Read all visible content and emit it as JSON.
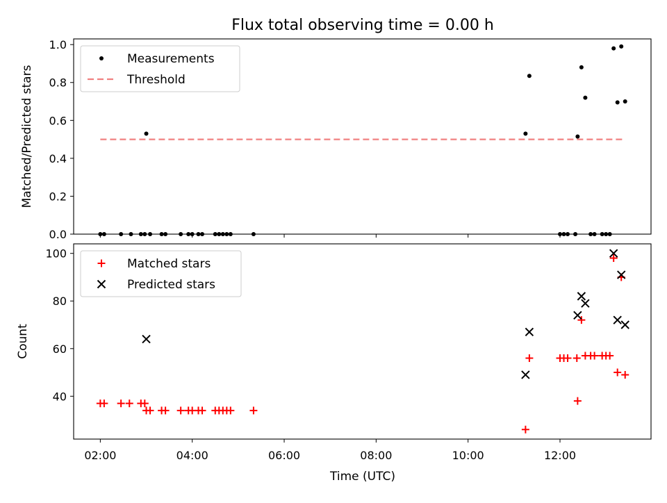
{
  "title": "Flux total observing time = 0.00 h",
  "xlabel": "Time (UTC)",
  "x_tick_labels": [
    "02:00",
    "04:00",
    "06:00",
    "08:00",
    "10:00",
    "12:00"
  ],
  "chart_data": [
    {
      "type": "scatter",
      "panel": "top",
      "ylabel": "Matched/Predicted stars",
      "ylim": [
        0,
        1.03
      ],
      "yticks": [
        0.0,
        0.2,
        0.4,
        0.6,
        0.8,
        1.0
      ],
      "y_tick_labels": [
        "0.0",
        "0.2",
        "0.4",
        "0.6",
        "0.8",
        "1.0"
      ],
      "legend_position": "top-left",
      "series": [
        {
          "name": "Measurements",
          "color": "#000000",
          "marker": "dot",
          "points": [
            [
              "02:00",
              0
            ],
            [
              "02:05",
              0
            ],
            [
              "02:27",
              0
            ],
            [
              "02:40",
              0
            ],
            [
              "02:53",
              0
            ],
            [
              "02:58",
              0
            ],
            [
              "03:00",
              0.53
            ],
            [
              "03:05",
              0
            ],
            [
              "03:20",
              0
            ],
            [
              "03:25",
              0
            ],
            [
              "03:45",
              0
            ],
            [
              "03:55",
              0
            ],
            [
              "04:00",
              0
            ],
            [
              "04:08",
              0
            ],
            [
              "04:13",
              0
            ],
            [
              "04:30",
              0
            ],
            [
              "04:35",
              0
            ],
            [
              "04:40",
              0
            ],
            [
              "04:45",
              0
            ],
            [
              "04:50",
              0
            ],
            [
              "05:20",
              0
            ],
            [
              "11:15",
              0.53
            ],
            [
              "11:20",
              0.835
            ],
            [
              "12:00",
              0
            ],
            [
              "12:05",
              0
            ],
            [
              "12:10",
              0
            ],
            [
              "12:20",
              0
            ],
            [
              "12:23",
              0.515
            ],
            [
              "12:28",
              0.88
            ],
            [
              "12:33",
              0.72
            ],
            [
              "12:40",
              0
            ],
            [
              "12:45",
              0
            ],
            [
              "12:55",
              0
            ],
            [
              "13:00",
              0
            ],
            [
              "13:05",
              0
            ],
            [
              "13:10",
              0.98
            ],
            [
              "13:15",
              0.695
            ],
            [
              "13:20",
              0.99
            ],
            [
              "13:25",
              0.7
            ]
          ]
        },
        {
          "name": "Threshold",
          "color": "#f08080",
          "line": "dashed",
          "points": [
            [
              "02:00",
              0.5
            ],
            [
              "13:25",
              0.5
            ]
          ]
        }
      ]
    },
    {
      "type": "scatter",
      "panel": "bottom",
      "ylabel": "Count",
      "ylim": [
        22,
        104
      ],
      "yticks": [
        40,
        60,
        80,
        100
      ],
      "y_tick_labels": [
        "40",
        "60",
        "80",
        "100"
      ],
      "legend_position": "top-left",
      "series": [
        {
          "name": "Matched stars",
          "color": "#ff0000",
          "marker": "plus",
          "points": [
            [
              "02:00",
              37
            ],
            [
              "02:05",
              37
            ],
            [
              "02:27",
              37
            ],
            [
              "02:38",
              37
            ],
            [
              "02:53",
              37
            ],
            [
              "02:58",
              37
            ],
            [
              "03:00",
              34
            ],
            [
              "03:05",
              34
            ],
            [
              "03:20",
              34
            ],
            [
              "03:25",
              34
            ],
            [
              "03:45",
              34
            ],
            [
              "03:55",
              34
            ],
            [
              "04:00",
              34
            ],
            [
              "04:08",
              34
            ],
            [
              "04:13",
              34
            ],
            [
              "04:30",
              34
            ],
            [
              "04:35",
              34
            ],
            [
              "04:40",
              34
            ],
            [
              "04:45",
              34
            ],
            [
              "04:50",
              34
            ],
            [
              "05:20",
              34
            ],
            [
              "11:15",
              26
            ],
            [
              "11:20",
              56
            ],
            [
              "12:00",
              56
            ],
            [
              "12:05",
              56
            ],
            [
              "12:10",
              56
            ],
            [
              "12:22",
              56
            ],
            [
              "12:23",
              38
            ],
            [
              "12:28",
              72
            ],
            [
              "12:33",
              57
            ],
            [
              "12:40",
              57
            ],
            [
              "12:45",
              57
            ],
            [
              "12:55",
              57
            ],
            [
              "13:00",
              57
            ],
            [
              "13:05",
              57
            ],
            [
              "13:10",
              98
            ],
            [
              "13:15",
              50
            ],
            [
              "13:20",
              90
            ],
            [
              "13:25",
              49
            ]
          ]
        },
        {
          "name": "Predicted stars",
          "color": "#000000",
          "marker": "x",
          "points": [
            [
              "03:00",
              64
            ],
            [
              "11:15",
              49
            ],
            [
              "11:20",
              67
            ],
            [
              "12:23",
              74
            ],
            [
              "12:28",
              82
            ],
            [
              "12:33",
              79
            ],
            [
              "13:10",
              100
            ],
            [
              "13:15",
              72
            ],
            [
              "13:20",
              91
            ],
            [
              "13:25",
              70
            ]
          ]
        }
      ]
    }
  ]
}
